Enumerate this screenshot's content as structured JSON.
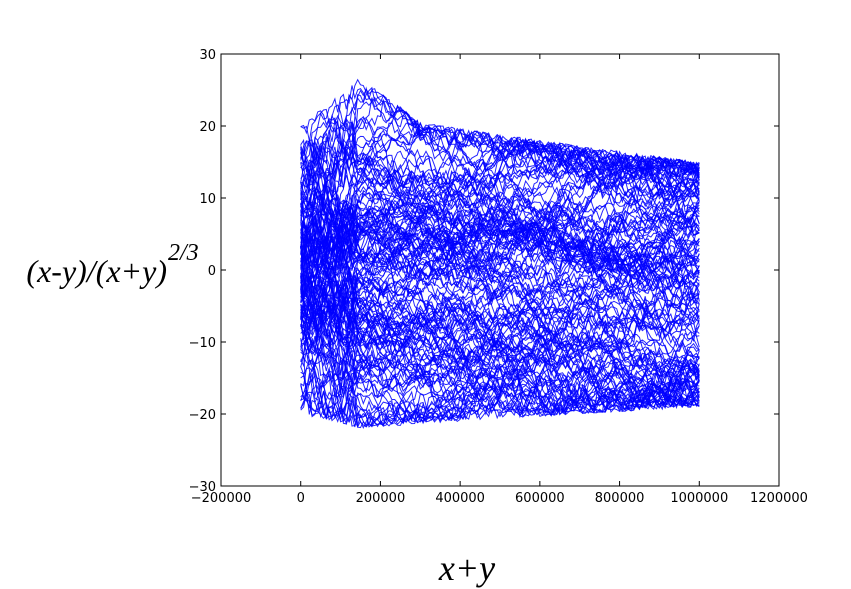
{
  "chart_data": {
    "type": "scatter",
    "title": "",
    "xlabel": "x+y",
    "ylabel": "(x-y)/(x+y)",
    "ylabel_exponent": "2/3",
    "xlim": [
      -200000,
      1200000
    ],
    "ylim": [
      -30,
      30
    ],
    "xticks": [
      -200000,
      0,
      200000,
      400000,
      600000,
      800000,
      1000000,
      1200000
    ],
    "xtick_labels": [
      "−200000",
      "0",
      "200000",
      "400000",
      "600000",
      "800000",
      "1000000",
      "1200000"
    ],
    "yticks": [
      -30,
      -20,
      -10,
      0,
      10,
      20,
      30
    ],
    "ytick_labels": [
      "−30",
      "−20",
      "−10",
      "0",
      "10",
      "20",
      "30"
    ],
    "grid": false,
    "series_color": "#0000ff",
    "series_description": "many random-walk trajectories from x+y = 0 to 1000000",
    "n_series": 160,
    "x_start": 0,
    "x_end": 1000000,
    "points_per_series": 140,
    "y_envelope_upper": [
      [
        0,
        20
      ],
      [
        150000,
        27
      ],
      [
        300000,
        20.5
      ],
      [
        600000,
        18
      ],
      [
        1000000,
        15
      ]
    ],
    "y_envelope_lower": [
      [
        0,
        -20
      ],
      [
        150000,
        -22
      ],
      [
        400000,
        -21
      ],
      [
        700000,
        -20
      ],
      [
        1000000,
        -19
      ]
    ],
    "random_seed": 7
  }
}
